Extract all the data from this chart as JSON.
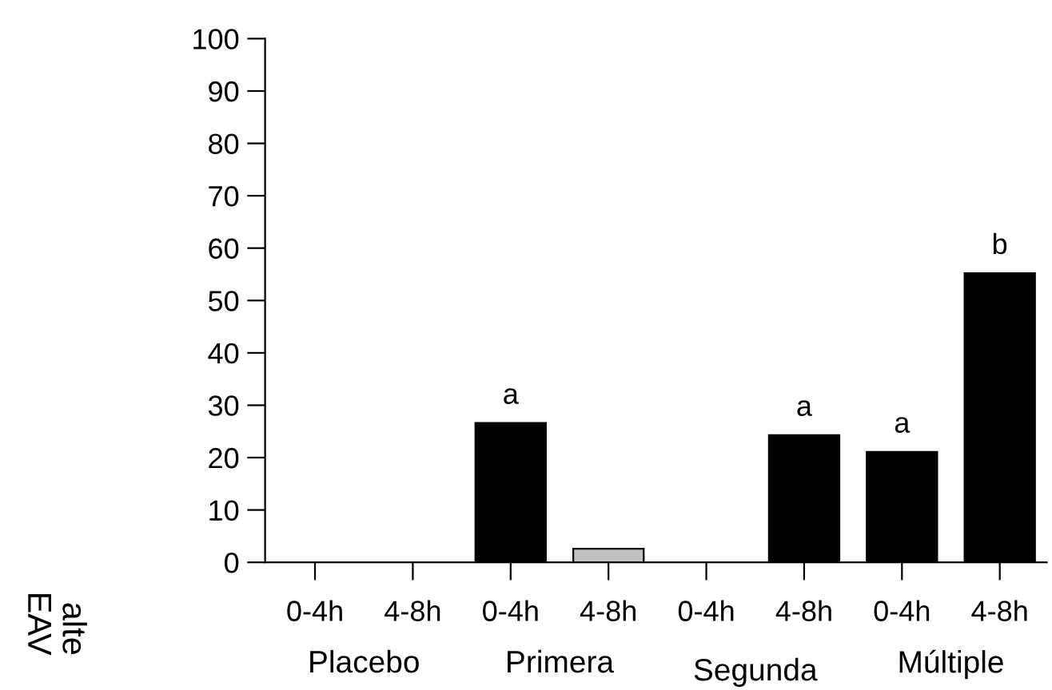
{
  "chart_data": {
    "type": "bar",
    "categories": [
      "0-4h",
      "4-8h",
      "0-4h",
      "4-8h",
      "0-4h",
      "4-8h",
      "0-4h",
      "4-8h"
    ],
    "values": [
      0,
      0,
      26.6,
      2.6,
      0,
      24.3,
      21.1,
      55.2
    ],
    "colors": [
      "#000000",
      "#000000",
      "#000000",
      "#c0c0c0",
      "#000000",
      "#000000",
      "#000000",
      "#000000"
    ],
    "value_labels": [
      null,
      null,
      "a",
      null,
      null,
      "a",
      "a",
      "b"
    ],
    "ylim": [
      0,
      100
    ],
    "yticks": [
      0,
      10,
      20,
      30,
      40,
      50,
      60,
      70,
      80,
      90,
      100
    ],
    "grid": false,
    "annotations": [
      "Placebo",
      "Primera",
      "Segunda",
      "Múltiple",
      "EAV",
      "alte"
    ]
  }
}
